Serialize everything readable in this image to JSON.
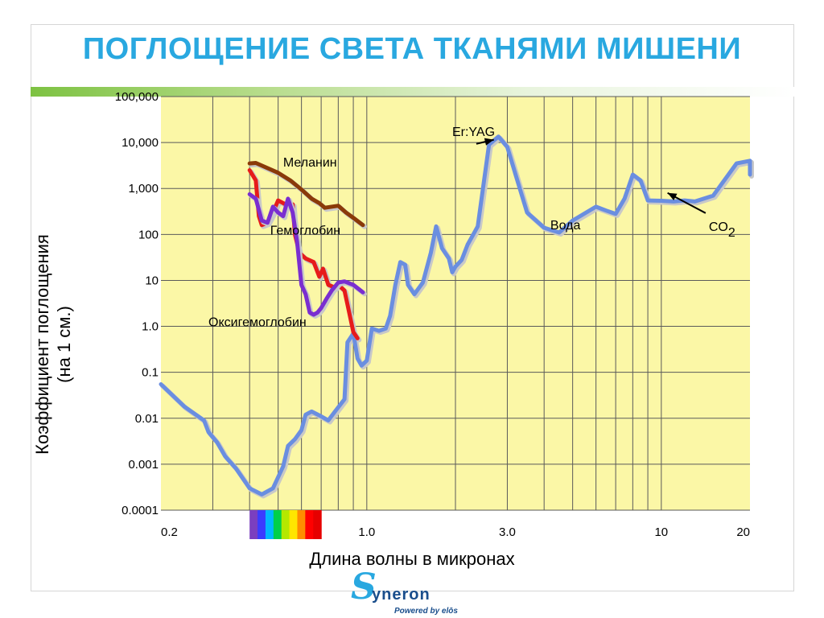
{
  "slide": {
    "title": "ПОГЛОЩЕНИЕ СВЕТА ТКАНЯМИ МИШЕНИ",
    "logo_text": "yneron",
    "logo_initial": "S",
    "logo_tagline": "Powered by elōs"
  },
  "chart_data": {
    "type": "line",
    "title": "ПОГЛОЩЕНИЕ СВЕТА ТКАНЯМИ МИШЕНИ",
    "xlabel": "Длина волны в микронах",
    "ylabel_lines": [
      "Коэффициент поглощения",
      "(на 1 см.)"
    ],
    "x_scale": "log",
    "y_scale": "log",
    "xlim": [
      0.2,
      20
    ],
    "ylim": [
      0.0001,
      100000
    ],
    "grid": true,
    "plot_background": "#fbf7a6",
    "x_ticks": [
      {
        "value": 0.2,
        "label": "0.2"
      },
      {
        "value": 1.0,
        "label": "1.0"
      },
      {
        "value": 3.0,
        "label": "3.0"
      },
      {
        "value": 10,
        "label": "10"
      },
      {
        "value": 20,
        "label": "20"
      }
    ],
    "y_ticks": [
      {
        "value": 0.0001,
        "label": "0.0001"
      },
      {
        "value": 0.001,
        "label": "0.001"
      },
      {
        "value": 0.01,
        "label": "0.01"
      },
      {
        "value": 0.1,
        "label": "0.1"
      },
      {
        "value": 1,
        "label": "1.0"
      },
      {
        "value": 10,
        "label": "10"
      },
      {
        "value": 100,
        "label": "100"
      },
      {
        "value": 1000,
        "label": "1,000"
      },
      {
        "value": 10000,
        "label": "10,000"
      },
      {
        "value": 100000,
        "label": "100,000"
      }
    ],
    "x_gridlines": [
      0.3,
      0.4,
      0.5,
      0.6,
      0.7,
      0.8,
      0.9,
      1,
      2,
      3,
      4,
      5,
      6,
      7,
      8,
      9,
      10
    ],
    "visible_spectrum": {
      "range": [
        0.4,
        0.7
      ],
      "colors": [
        "#7b3fbf",
        "#3b3bff",
        "#00b8ff",
        "#00d04a",
        "#b5e800",
        "#ffe600",
        "#ff8c00",
        "#ff0000",
        "#e60000"
      ]
    },
    "series": [
      {
        "name": "Вода",
        "color": "#6a8ee0",
        "points": [
          [
            0.2,
            0.055
          ],
          [
            0.24,
            0.018
          ],
          [
            0.28,
            0.009
          ],
          [
            0.29,
            0.005
          ],
          [
            0.31,
            0.003
          ],
          [
            0.33,
            0.0015
          ],
          [
            0.36,
            0.0008
          ],
          [
            0.4,
            0.0003
          ],
          [
            0.44,
            0.00022
          ],
          [
            0.48,
            0.0003
          ],
          [
            0.52,
            0.0009
          ],
          [
            0.54,
            0.0025
          ],
          [
            0.57,
            0.0035
          ],
          [
            0.6,
            0.0055
          ],
          [
            0.62,
            0.012
          ],
          [
            0.65,
            0.014
          ],
          [
            0.7,
            0.011
          ],
          [
            0.74,
            0.009
          ],
          [
            0.78,
            0.014
          ],
          [
            0.84,
            0.026
          ],
          [
            0.86,
            0.45
          ],
          [
            0.9,
            0.7
          ],
          [
            0.93,
            0.2
          ],
          [
            0.96,
            0.14
          ],
          [
            1.0,
            0.18
          ],
          [
            1.04,
            0.9
          ],
          [
            1.1,
            0.8
          ],
          [
            1.16,
            0.9
          ],
          [
            1.2,
            1.7
          ],
          [
            1.25,
            8
          ],
          [
            1.3,
            25
          ],
          [
            1.35,
            22
          ],
          [
            1.38,
            8
          ],
          [
            1.45,
            5
          ],
          [
            1.55,
            9
          ],
          [
            1.65,
            40
          ],
          [
            1.72,
            150
          ],
          [
            1.8,
            50
          ],
          [
            1.9,
            30
          ],
          [
            1.95,
            15
          ],
          [
            2.0,
            20
          ],
          [
            2.1,
            28
          ],
          [
            2.2,
            60
          ],
          [
            2.3,
            100
          ],
          [
            2.38,
            150
          ],
          [
            2.6,
            9000
          ],
          [
            2.8,
            13500
          ],
          [
            3.0,
            8000
          ],
          [
            3.2,
            2000
          ],
          [
            3.5,
            300
          ],
          [
            4.0,
            140
          ],
          [
            4.5,
            110
          ],
          [
            5.0,
            200
          ],
          [
            6.0,
            400
          ],
          [
            6.5,
            330
          ],
          [
            7.0,
            280
          ],
          [
            7.5,
            600
          ],
          [
            8.0,
            2000
          ],
          [
            8.5,
            1500
          ],
          [
            9.0,
            550
          ],
          [
            10,
            540
          ],
          [
            11,
            520
          ],
          [
            12,
            550
          ],
          [
            13,
            520
          ],
          [
            15,
            700
          ],
          [
            18,
            3500
          ],
          [
            20,
            4000
          ],
          [
            22,
            3000
          ],
          [
            25,
            2000
          ]
        ]
      },
      {
        "name": "Меланин",
        "color": "#8a3a08",
        "points": [
          [
            0.4,
            3500
          ],
          [
            0.42,
            3600
          ],
          [
            0.5,
            2200
          ],
          [
            0.55,
            1500
          ],
          [
            0.6,
            950
          ],
          [
            0.65,
            600
          ],
          [
            0.69,
            480
          ],
          [
            0.72,
            380
          ],
          [
            0.8,
            420
          ],
          [
            0.85,
            300
          ],
          [
            0.9,
            230
          ],
          [
            0.97,
            160
          ]
        ]
      },
      {
        "name": "Гемоглобин",
        "color": "#e61b1b",
        "points": [
          [
            0.4,
            2500
          ],
          [
            0.42,
            1500
          ],
          [
            0.43,
            250
          ],
          [
            0.44,
            160
          ],
          [
            0.46,
            180
          ],
          [
            0.48,
            300
          ],
          [
            0.5,
            550
          ],
          [
            0.53,
            450
          ],
          [
            0.56,
            450
          ],
          [
            0.57,
            100
          ],
          [
            0.59,
            40
          ],
          [
            0.62,
            30
          ],
          [
            0.66,
            25
          ],
          [
            0.69,
            12
          ],
          [
            0.71,
            18
          ],
          [
            0.74,
            8
          ],
          [
            0.78,
            7
          ],
          [
            0.8,
            8
          ],
          [
            0.84,
            6
          ],
          [
            0.86,
            3
          ],
          [
            0.9,
            0.75
          ],
          [
            0.93,
            0.55
          ]
        ]
      },
      {
        "name": "Оксигемоглобин",
        "color": "#7a2ed0",
        "points": [
          [
            0.4,
            750
          ],
          [
            0.42,
            600
          ],
          [
            0.44,
            200
          ],
          [
            0.46,
            180
          ],
          [
            0.48,
            400
          ],
          [
            0.5,
            300
          ],
          [
            0.52,
            250
          ],
          [
            0.54,
            600
          ],
          [
            0.56,
            300
          ],
          [
            0.58,
            70
          ],
          [
            0.6,
            8
          ],
          [
            0.62,
            5
          ],
          [
            0.64,
            2
          ],
          [
            0.66,
            1.8
          ],
          [
            0.68,
            2
          ],
          [
            0.7,
            2.5
          ],
          [
            0.73,
            4
          ],
          [
            0.76,
            6
          ],
          [
            0.8,
            9
          ],
          [
            0.84,
            9.5
          ],
          [
            0.9,
            8
          ],
          [
            0.97,
            5.5
          ]
        ]
      }
    ],
    "annotations": [
      {
        "text": "Меланин",
        "at": [
          0.52,
          3000
        ]
      },
      {
        "text": "Гемоглобин",
        "at": [
          0.47,
          100
        ]
      },
      {
        "text": "Оксигемоглобин",
        "at": [
          0.29,
          1.0
        ]
      },
      {
        "text": "Вода",
        "at": [
          4.2,
          130
        ]
      },
      {
        "text": "Er:YAG",
        "at": [
          1.95,
          14000
        ],
        "arrow_to": [
          2.7,
          11500
        ]
      },
      {
        "text": "CO",
        "subscript": "2",
        "at": [
          14.5,
          120
        ],
        "arrow_to": [
          10.5,
          800
        ]
      }
    ]
  }
}
